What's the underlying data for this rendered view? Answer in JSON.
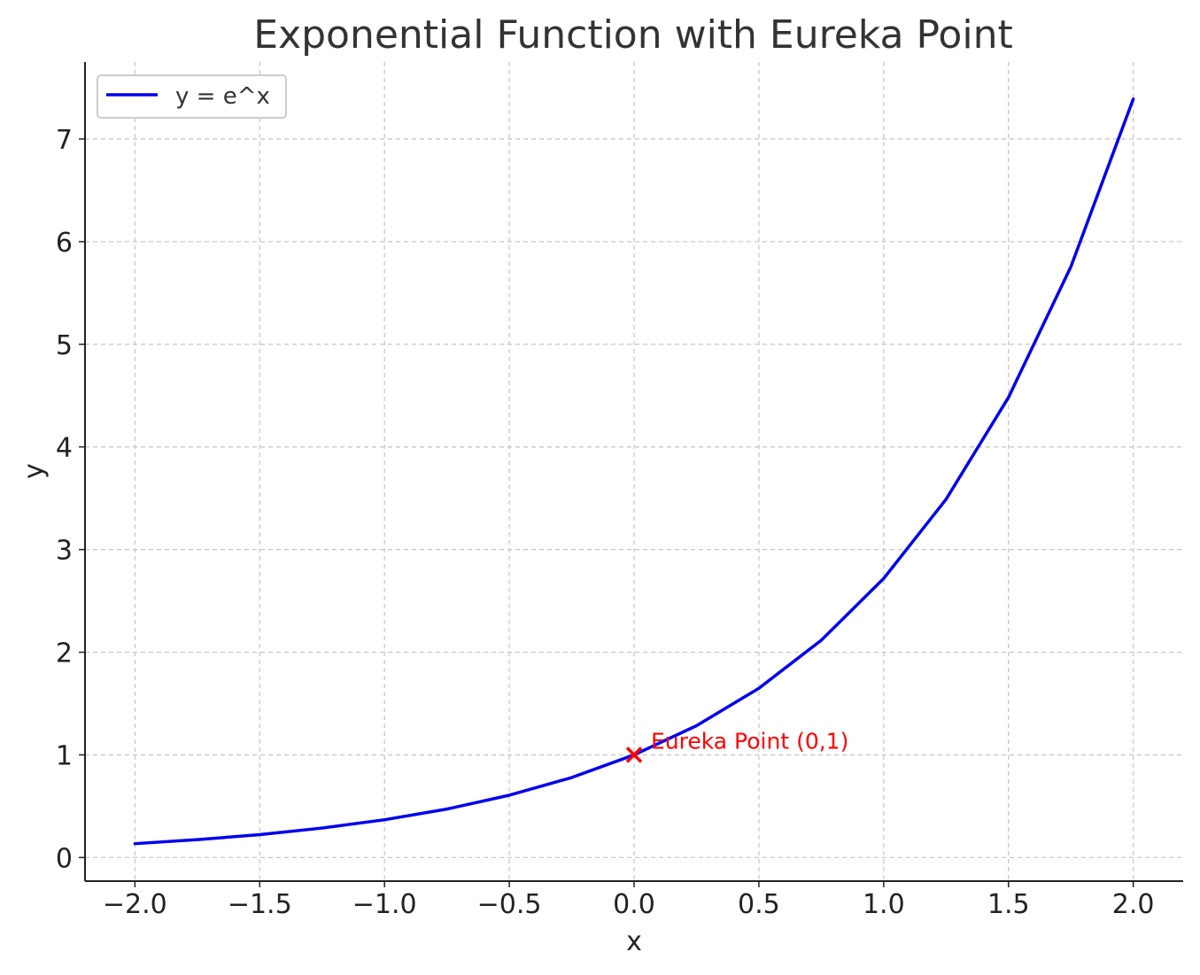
{
  "chart_data": {
    "type": "line",
    "title": "Exponential Function with Eureka Point",
    "xlabel": "x",
    "ylabel": "y",
    "xlim": [
      -2.2,
      2.2
    ],
    "ylim": [
      -0.23,
      7.75
    ],
    "grid": true,
    "legend_position": "top-left",
    "x_ticks": [
      {
        "value": -2.0,
        "label": "−2.0"
      },
      {
        "value": -1.5,
        "label": "−1.5"
      },
      {
        "value": -1.0,
        "label": "−1.0"
      },
      {
        "value": -0.5,
        "label": "−0.5"
      },
      {
        "value": 0.0,
        "label": "0.0"
      },
      {
        "value": 0.5,
        "label": "0.5"
      },
      {
        "value": 1.0,
        "label": "1.0"
      },
      {
        "value": 1.5,
        "label": "1.5"
      },
      {
        "value": 2.0,
        "label": "2.0"
      }
    ],
    "y_ticks": [
      {
        "value": 0,
        "label": "0"
      },
      {
        "value": 1,
        "label": "1"
      },
      {
        "value": 2,
        "label": "2"
      },
      {
        "value": 3,
        "label": "3"
      },
      {
        "value": 4,
        "label": "4"
      },
      {
        "value": 5,
        "label": "5"
      },
      {
        "value": 6,
        "label": "6"
      },
      {
        "value": 7,
        "label": "7"
      }
    ],
    "series": [
      {
        "name": "y = e^x",
        "color": "#0000ee",
        "x": [
          -2.0,
          -1.75,
          -1.5,
          -1.25,
          -1.0,
          -0.75,
          -0.5,
          -0.25,
          0.0,
          0.25,
          0.5,
          0.75,
          1.0,
          1.25,
          1.5,
          1.75,
          2.0
        ],
        "y": [
          0.135,
          0.174,
          0.223,
          0.287,
          0.368,
          0.472,
          0.607,
          0.779,
          1.0,
          1.284,
          1.649,
          2.117,
          2.718,
          3.49,
          4.482,
          5.755,
          7.389
        ]
      }
    ],
    "annotations": [
      {
        "x": 0,
        "y": 1,
        "marker": "x",
        "text": "Eureka Point (0,1)",
        "color": "#ff0000"
      }
    ]
  }
}
